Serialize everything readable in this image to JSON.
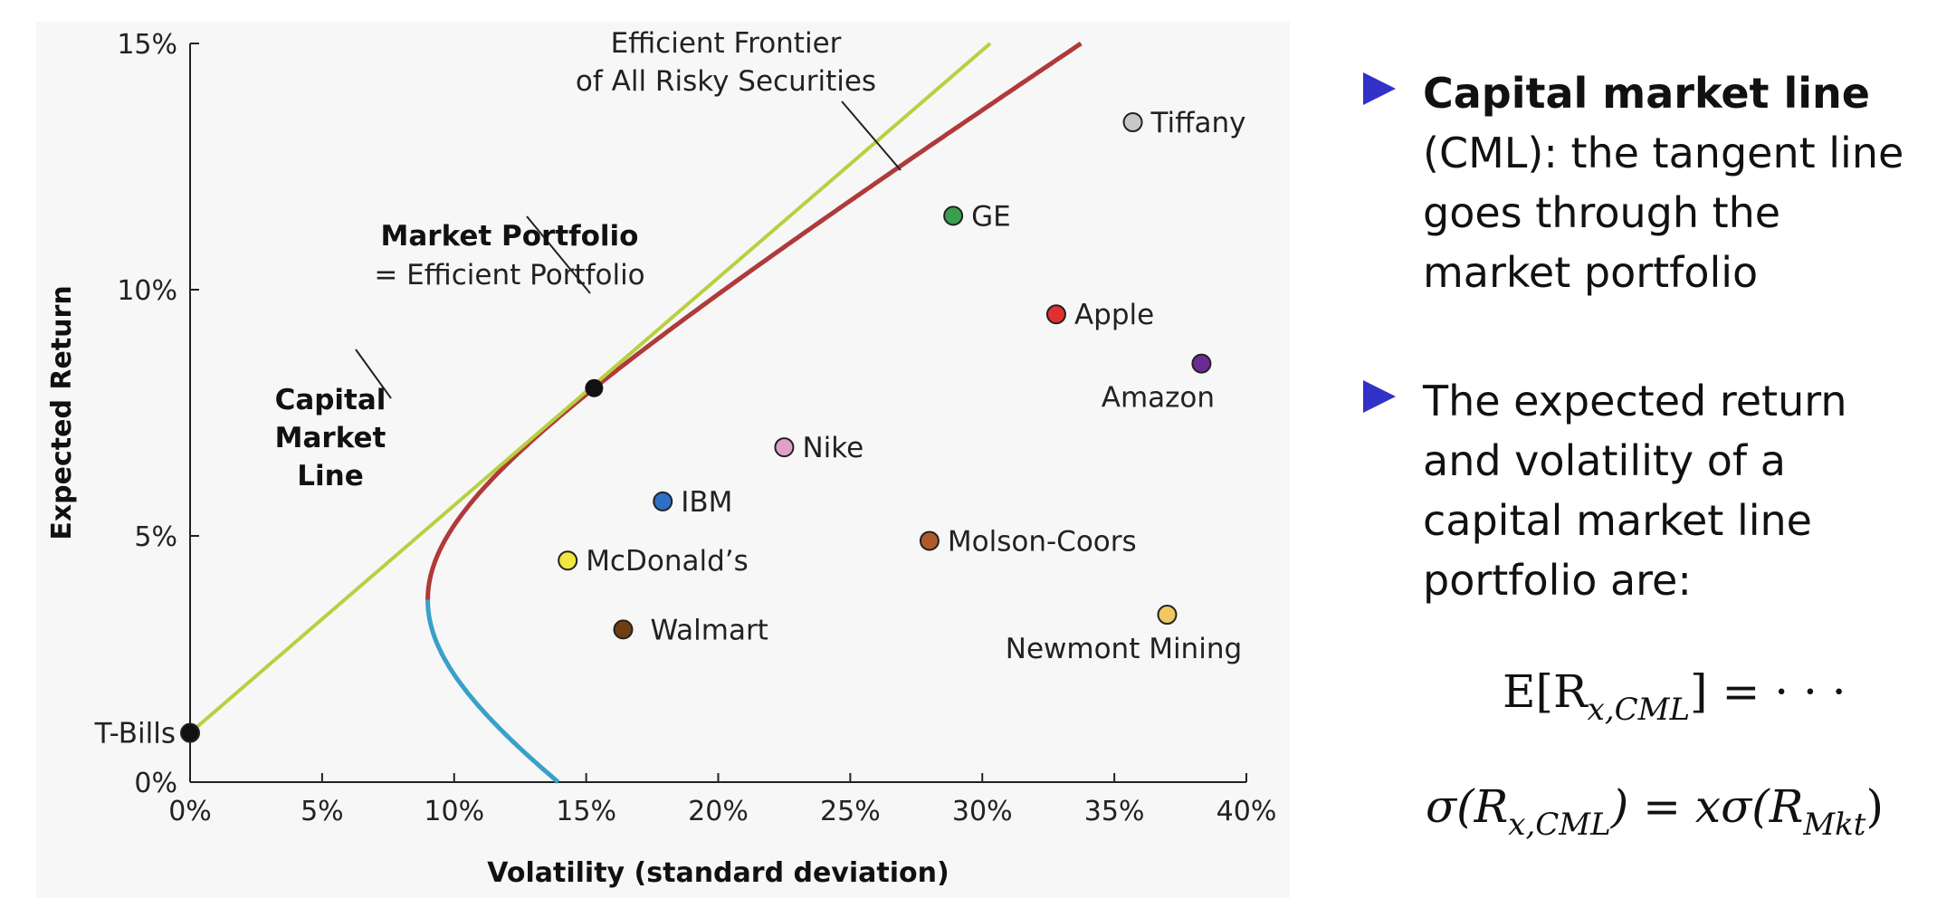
{
  "chart_data": {
    "type": "scatter",
    "xlabel": "Volatility (standard deviation)",
    "ylabel": "Expected Return",
    "xlim": [
      0,
      40
    ],
    "ylim": [
      0,
      15
    ],
    "x_ticks": [
      "0%",
      "5%",
      "10%",
      "15%",
      "20%",
      "25%",
      "30%",
      "35%",
      "40%"
    ],
    "y_ticks": [
      "0%",
      "5%",
      "10%",
      "15%"
    ],
    "x_tick_values": [
      0,
      5,
      10,
      15,
      20,
      25,
      30,
      35,
      40
    ],
    "y_tick_values": [
      0,
      5,
      10,
      15
    ],
    "grid": false,
    "points": [
      {
        "name": "Tiffany",
        "x": 35.7,
        "y": 13.4,
        "color": "#c8c8c8",
        "label_side": "right"
      },
      {
        "name": "GE",
        "x": 28.9,
        "y": 11.5,
        "color": "#3a9e4f",
        "label_side": "right"
      },
      {
        "name": "Apple",
        "x": 32.8,
        "y": 9.5,
        "color": "#e03030",
        "label_side": "right"
      },
      {
        "name": "Amazon",
        "x": 38.3,
        "y": 8.5,
        "color": "#6a2c90",
        "label_side": "below"
      },
      {
        "name": "Nike",
        "x": 22.5,
        "y": 6.8,
        "color": "#e0a0cc",
        "label_side": "right"
      },
      {
        "name": "IBM",
        "x": 17.9,
        "y": 5.7,
        "color": "#2f6fc8",
        "label_side": "right"
      },
      {
        "name": "Molson-Coors",
        "x": 28.0,
        "y": 4.9,
        "color": "#b05a2a",
        "label_side": "right"
      },
      {
        "name": "McDonald’s",
        "x": 14.3,
        "y": 4.5,
        "color": "#f2e640",
        "label_side": "right"
      },
      {
        "name": "Walmart",
        "x": 16.4,
        "y": 3.1,
        "color": "#6e3e10",
        "label_side": "right-far"
      },
      {
        "name": "Newmont Mining",
        "x": 37.0,
        "y": 3.4,
        "color": "#f0c860",
        "label_side": "below"
      },
      {
        "name": "T-Bills",
        "x": 0.0,
        "y": 1.0,
        "color": "#111111",
        "label_side": "left"
      }
    ],
    "market_portfolio": {
      "x": 15.3,
      "y": 8.0,
      "color": "#111111"
    },
    "frontier": {
      "min_variance_point": [
        9.0,
        3.7
      ],
      "efficient_color": "#b03a3a",
      "inefficient_color": "#3aa0c8",
      "efficient_end": [
        32.0,
        15.0
      ],
      "inefficient_end": [
        13.4,
        0.0
      ]
    },
    "cml": {
      "from": [
        0.0,
        1.0
      ],
      "to": [
        30.3,
        15.0
      ],
      "color": "#b8d040"
    },
    "annotations": {
      "frontier_line1": "Efficient Frontier",
      "frontier_line2": "of All Risky Securities",
      "market_line1": "Market Portfolio",
      "market_line2": "= Efficient Portfolio",
      "cml_line1": "Capital",
      "cml_line2": "Market",
      "cml_line3": "Line"
    }
  },
  "notes": {
    "bullet1_bold": "Capital market line",
    "bullet1_rest": "(CML): the tangent line goes through the market portfolio",
    "bullet2": "The expected return and volatility of a capital market line portfolio are:",
    "formula1_lhs": "E[R",
    "formula1_sub": "x,CML",
    "formula1_rhs": "] = · · ·",
    "formula2_lhs": "σ(R",
    "formula2_sub": "x,CML",
    "formula2_mid": ") = xσ(R",
    "formula2_sub2": "Mkt",
    "formula2_rhs": ")",
    "accent_color": "#3232c8"
  }
}
